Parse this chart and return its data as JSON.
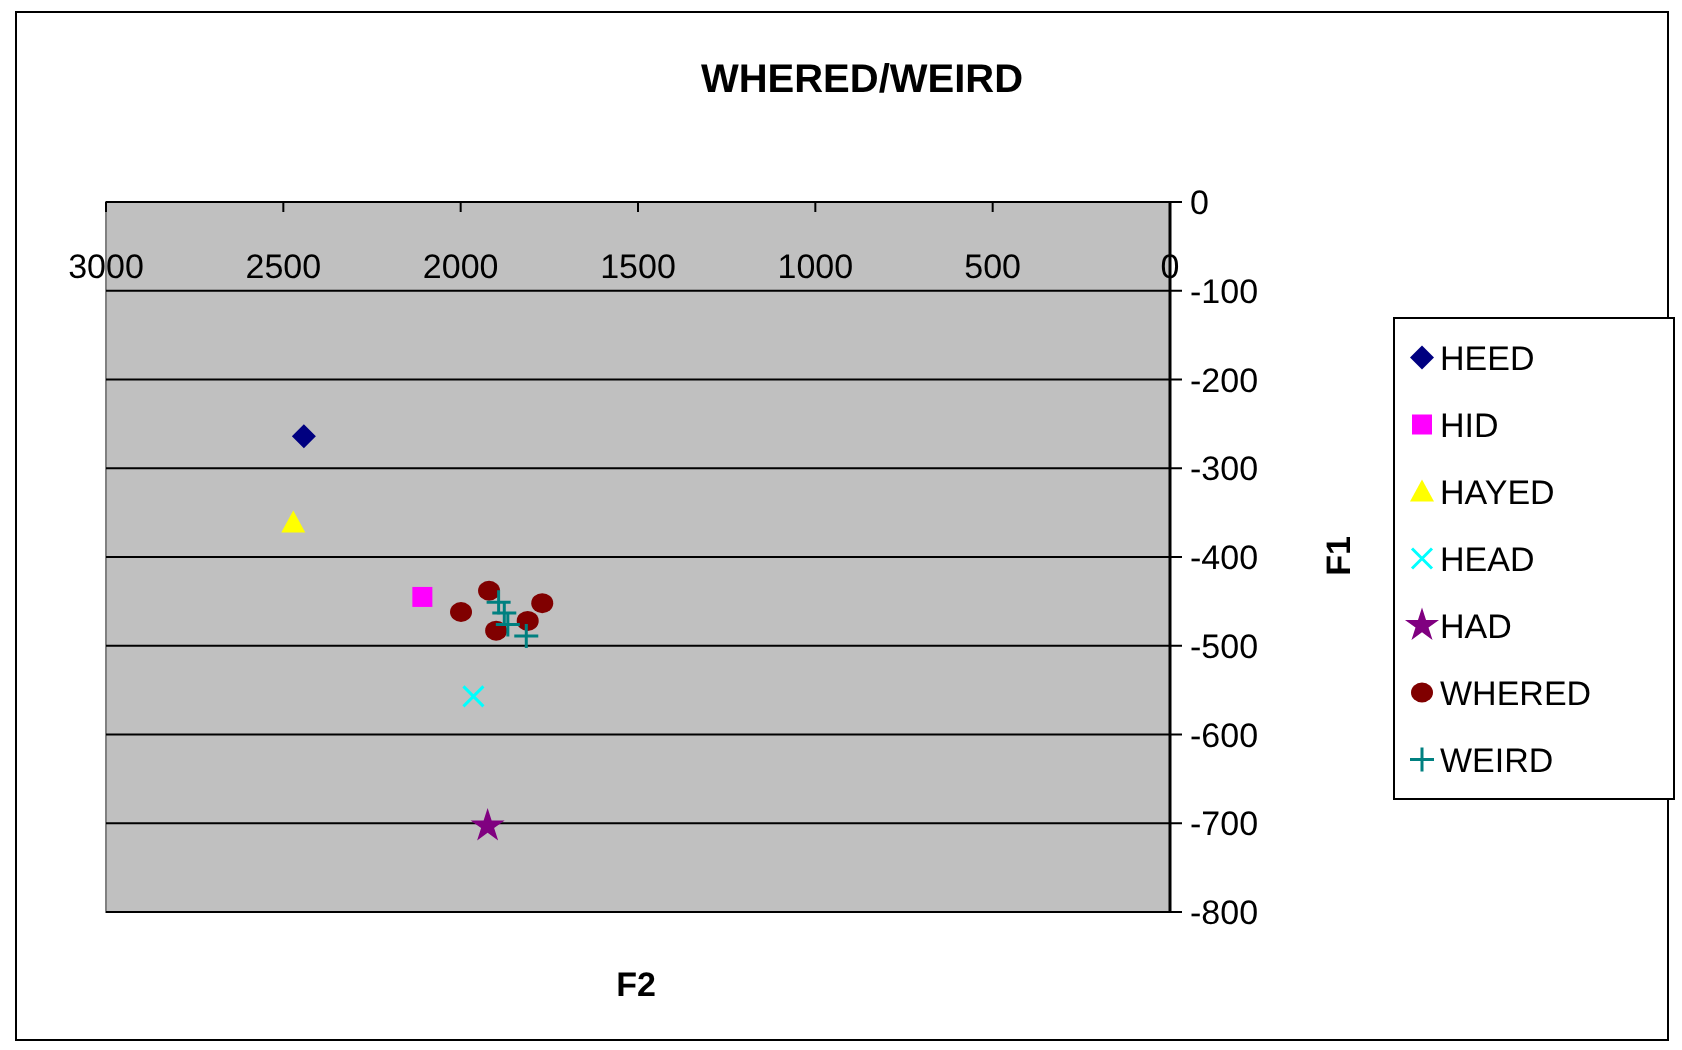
{
  "chart_data": {
    "type": "scatter",
    "title": "WHERED/WEIRD",
    "xlabel": "F2",
    "ylabel": "F1",
    "xlim": [
      3000,
      0
    ],
    "xticks": [
      3000,
      2500,
      2000,
      1500,
      1000,
      500,
      0
    ],
    "ylim": [
      -800,
      0
    ],
    "yticks": [
      0,
      -100,
      -200,
      -300,
      -400,
      -500,
      -600,
      -700,
      -800
    ],
    "grid": "y",
    "legend": "right",
    "series": [
      {
        "name": "HEED",
        "color": "#000080",
        "marker": "diamond",
        "x": [
          2442
        ],
        "values": [
          -264
        ]
      },
      {
        "name": "HID",
        "color": "#ff00ff",
        "marker": "square",
        "x": [
          2108
        ],
        "values": [
          -445
        ]
      },
      {
        "name": "HAYED",
        "color": "#ffff00",
        "marker": "triangle",
        "x": [
          2472
        ],
        "values": [
          -361
        ]
      },
      {
        "name": "HEAD",
        "color": "#00ffff",
        "marker": "x",
        "x": [
          1964
        ],
        "values": [
          -557
        ]
      },
      {
        "name": "HAD",
        "color": "#800080",
        "marker": "star",
        "x": [
          1924
        ],
        "values": [
          -703
        ]
      },
      {
        "name": "WHERED",
        "color": "#800000",
        "marker": "circle",
        "x": [
          1920,
          1999,
          1900,
          1811,
          1770
        ],
        "values": [
          -438,
          -462,
          -483,
          -472,
          -452
        ]
      },
      {
        "name": "WEIRD",
        "color": "#008080",
        "marker": "plus",
        "x": [
          1893,
          1877,
          1867,
          1815
        ],
        "values": [
          -451,
          -463,
          -476,
          -489
        ]
      }
    ]
  }
}
